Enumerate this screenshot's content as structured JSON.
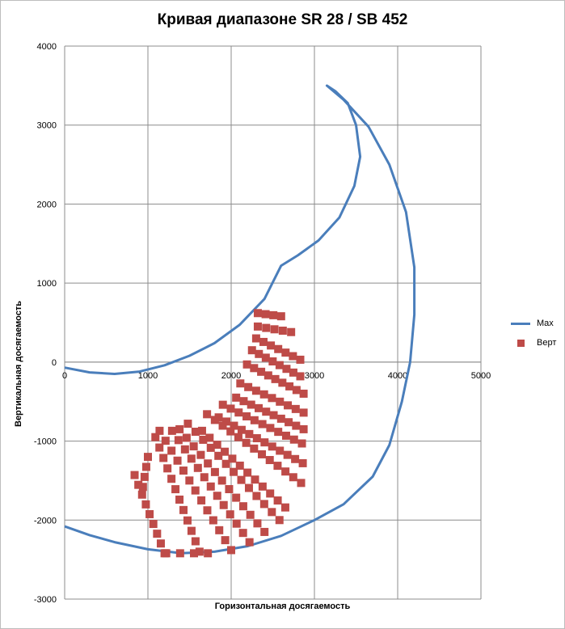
{
  "chart_data": {
    "type": "scatter",
    "title": "Кривая диапазоне SR 28 / SB 452",
    "xlabel": "Горизонтальная  досягаемость",
    "ylabel": "Вертикальная  досягаемость",
    "xlim": [
      0,
      5000
    ],
    "ylim": [
      -3000,
      4000
    ],
    "x_ticks": [
      "0",
      "1000",
      "2000",
      "3000",
      "4000",
      "5000"
    ],
    "y_ticks": [
      "4000",
      "3000",
      "2000",
      "1000",
      "0",
      "-1000",
      "-2000",
      "-3000"
    ],
    "grid": true,
    "legend_position": "right",
    "series": [
      {
        "name": "Max",
        "kind": "line",
        "color": "#4a7ebb",
        "points": [
          [
            0,
            -70
          ],
          [
            300,
            -130
          ],
          [
            600,
            -150
          ],
          [
            900,
            -120
          ],
          [
            1200,
            -40
          ],
          [
            1500,
            80
          ],
          [
            1800,
            240
          ],
          [
            2100,
            470
          ],
          [
            2400,
            800
          ],
          [
            2600,
            1220
          ],
          [
            2800,
            1350
          ],
          [
            3050,
            1540
          ],
          [
            3300,
            1830
          ],
          [
            3480,
            2230
          ],
          [
            3550,
            2600
          ],
          [
            3500,
            3000
          ],
          [
            3400,
            3280
          ],
          [
            3250,
            3430
          ],
          [
            3150,
            3500
          ],
          [
            3350,
            3320
          ],
          [
            3650,
            2980
          ],
          [
            3900,
            2500
          ],
          [
            4100,
            1900
          ],
          [
            4200,
            1200
          ],
          [
            4200,
            600
          ],
          [
            4150,
            0
          ],
          [
            4050,
            -500
          ],
          [
            3900,
            -1050
          ],
          [
            3700,
            -1450
          ],
          [
            3350,
            -1800
          ],
          [
            3000,
            -2000
          ],
          [
            2600,
            -2200
          ],
          [
            2200,
            -2330
          ],
          [
            1800,
            -2400
          ],
          [
            1400,
            -2420
          ],
          [
            1000,
            -2370
          ],
          [
            600,
            -2280
          ],
          [
            300,
            -2190
          ],
          [
            0,
            -2080
          ]
        ]
      },
      {
        "name": "Верт",
        "kind": "scatter",
        "color": "#be4b48",
        "groups": [
          {
            "start": [
              2320,
              620
            ],
            "end": [
              2600,
              580
            ],
            "n": 4
          },
          {
            "start": [
              2320,
              450
            ],
            "end": [
              2720,
              380
            ],
            "n": 5
          },
          {
            "start": [
              2300,
              300
            ],
            "end": [
              2830,
              30
            ],
            "n": 7
          },
          {
            "start": [
              2250,
              150
            ],
            "end": [
              2830,
              -180
            ],
            "n": 8
          },
          {
            "start": [
              2190,
              -30
            ],
            "end": [
              2870,
              -400
            ],
            "n": 9
          },
          {
            "start": [
              2110,
              -270
            ],
            "end": [
              2870,
              -640
            ],
            "n": 9
          },
          {
            "start": [
              2060,
              -450
            ],
            "end": [
              2870,
              -850
            ],
            "n": 10
          },
          {
            "start": [
              1900,
              -540
            ],
            "end": [
              2850,
              -1030
            ],
            "n": 11
          },
          {
            "start": [
              1850,
              -700
            ],
            "end": [
              2860,
              -1280
            ],
            "n": 12
          },
          {
            "start": [
              1710,
              -660
            ],
            "end": [
              2840,
              -1530
            ],
            "n": 13
          },
          {
            "start": [
              1650,
              -870
            ],
            "end": [
              2650,
              -1840
            ],
            "n": 12
          },
          {
            "start": [
              1480,
              -780
            ],
            "end": [
              2580,
              -2000
            ],
            "n": 13
          },
          {
            "start": [
              1380,
              -850
            ],
            "end": [
              2400,
              -2150
            ],
            "n": 13
          },
          {
            "start": [
              1290,
              -870
            ],
            "end": [
              2220,
              -2280
            ],
            "n": 13
          },
          {
            "start": [
              1140,
              -870
            ],
            "end": [
              2000,
              -2380
            ],
            "n": 13
          },
          {
            "start": [
              1090,
              -950
            ],
            "end": [
              1620,
              -2400
            ],
            "n": 12
          },
          {
            "start": [
              840,
              -1430
            ],
            "end": [
              1200,
              -2420
            ],
            "n": 9
          },
          {
            "start": [
              1000,
              -1200
            ],
            "end": [
              940,
              -1580
            ],
            "n": 4
          },
          {
            "start": [
              1220,
              -2420
            ],
            "end": [
              1720,
              -2420
            ],
            "n": 4
          }
        ]
      }
    ]
  }
}
